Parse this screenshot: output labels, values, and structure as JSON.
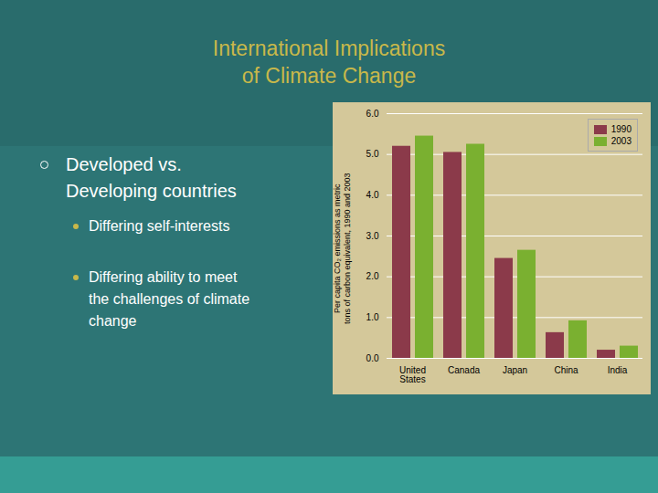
{
  "chart_data": {
    "type": "bar",
    "title": "International Implications\nof Climate Change",
    "annotations": [
      "Developed vs.\nDeveloping countries",
      "Differing self-interests",
      "Differing ability to meet\nthe challenges of climate\nchange"
    ],
    "categories": [
      "United\nStates",
      "Canada",
      "Japan",
      "China",
      "India"
    ],
    "series": [
      {
        "name": "1990",
        "color": "#8b3a4a",
        "values": [
          5.2,
          5.05,
          2.45,
          0.63,
          0.2
        ]
      },
      {
        "name": "2003",
        "color": "#7ab030",
        "values": [
          5.45,
          5.25,
          2.65,
          0.92,
          0.3
        ]
      }
    ],
    "ylabel": "Per capita CO₂ emissions as metric\ntons of carbon equivalent, 1990 and 2003",
    "ylim": [
      0,
      6
    ],
    "yticks": [
      0,
      1,
      2,
      3,
      4,
      5,
      6
    ],
    "grid": true,
    "legend": "upper right"
  }
}
